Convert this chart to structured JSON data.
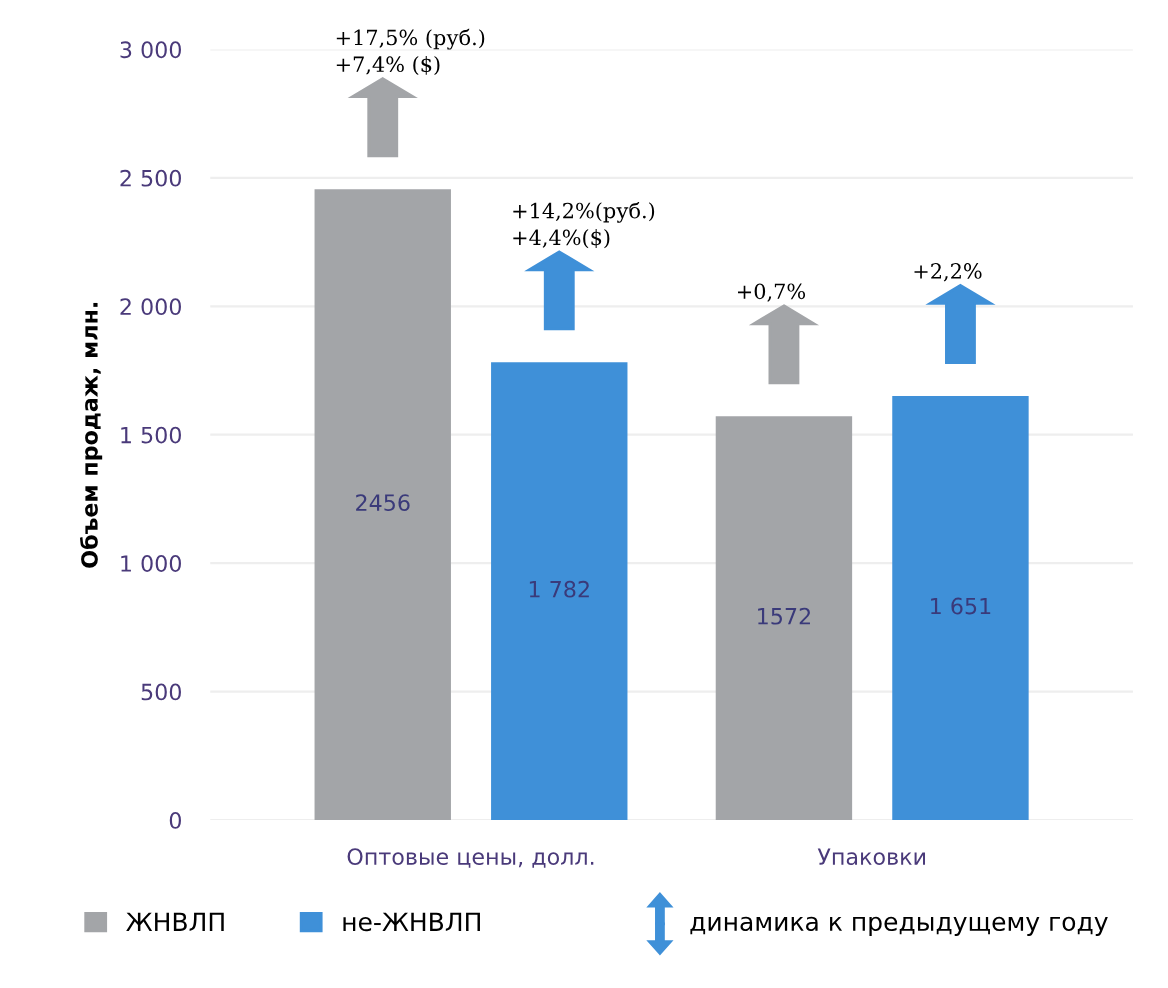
{
  "chart_data": {
    "type": "bar",
    "ylabel": "Объем продаж, млн.",
    "categories": [
      "Оптовые цены, долл.",
      "Упаковки"
    ],
    "series": [
      {
        "name": "ЖНВЛП",
        "color": "#a3a5a8",
        "values": [
          2456,
          1572
        ],
        "value_labels": [
          "2456",
          "1572"
        ]
      },
      {
        "name": "не-ЖНВЛП",
        "color": "#3f90d8",
        "values": [
          1782,
          1651
        ],
        "value_labels": [
          "1 782",
          "1 651"
        ]
      }
    ],
    "ylim": [
      0,
      3000
    ],
    "yticks": [
      0,
      500,
      {
        "value": 1000,
        "label": "1 000"
      },
      {
        "value": 1500,
        "label": "1 500"
      },
      {
        "value": 2000,
        "label": "2 000"
      },
      {
        "value": 2500,
        "label": "2 500"
      },
      {
        "value": 3000,
        "label": "3 000"
      }
    ],
    "grid": "y",
    "legend": "bottom",
    "annotations": [
      "+17,5% (руб.)\n+7,4% ($)",
      "+14,2%(руб.)\n+4,4%($)",
      "+0,7%",
      "+2,2%",
      "динамика к предыдущему году"
    ]
  }
}
